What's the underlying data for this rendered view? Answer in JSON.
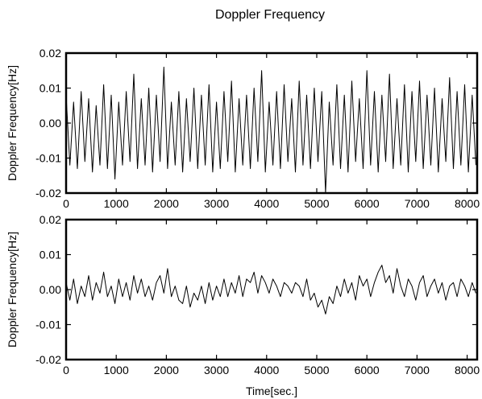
{
  "figure": {
    "title": "Doppler Frequency",
    "xlabel": "Time[sec.]"
  },
  "chart_data": [
    {
      "type": "line",
      "title": "",
      "xlabel": "",
      "ylabel": "Doppler Frequency[Hz]",
      "xlim": [
        0,
        8200
      ],
      "ylim": [
        -0.02,
        0.02
      ],
      "xticks": [
        0,
        1000,
        2000,
        3000,
        4000,
        5000,
        6000,
        7000,
        8000
      ],
      "xtick_labels": [
        "0",
        "1000",
        "2000",
        "3000",
        "4000",
        "5000",
        "6000",
        "7000",
        "8000"
      ],
      "yticks": [
        -0.02,
        -0.01,
        0.0,
        0.01,
        0.02
      ],
      "ytick_labels": [
        "-0.02",
        "-0.01",
        "0.00",
        "0.01",
        "0.02"
      ],
      "grid": false,
      "series": [
        {
          "color": "#000000",
          "x": [
            0,
            75,
            150,
            225,
            300,
            375,
            450,
            525,
            600,
            675,
            750,
            825,
            900,
            975,
            1050,
            1125,
            1200,
            1275,
            1350,
            1425,
            1500,
            1575,
            1650,
            1725,
            1800,
            1875,
            1950,
            2025,
            2100,
            2175,
            2250,
            2325,
            2400,
            2475,
            2550,
            2625,
            2700,
            2775,
            2850,
            2925,
            3000,
            3075,
            3150,
            3225,
            3300,
            3375,
            3450,
            3525,
            3600,
            3675,
            3750,
            3825,
            3900,
            3975,
            4050,
            4125,
            4200,
            4275,
            4350,
            4425,
            4500,
            4575,
            4650,
            4725,
            4800,
            4875,
            4950,
            5025,
            5100,
            5175,
            5250,
            5325,
            5400,
            5475,
            5550,
            5625,
            5700,
            5775,
            5850,
            5925,
            6000,
            6075,
            6150,
            6225,
            6300,
            6375,
            6450,
            6525,
            6600,
            6675,
            6750,
            6825,
            6900,
            6975,
            7050,
            7125,
            7200,
            7275,
            7350,
            7425,
            7500,
            7575,
            7650,
            7725,
            7800,
            7875,
            7950,
            8025,
            8100,
            8175
          ],
          "y": [
            0.008,
            -0.012,
            0.006,
            -0.013,
            0.009,
            -0.011,
            0.007,
            -0.014,
            0.005,
            -0.012,
            0.011,
            -0.013,
            0.008,
            -0.016,
            0.006,
            -0.012,
            0.009,
            -0.011,
            0.014,
            -0.013,
            0.007,
            -0.012,
            0.01,
            -0.014,
            0.008,
            -0.011,
            0.016,
            -0.013,
            0.006,
            -0.012,
            0.009,
            -0.014,
            0.007,
            -0.011,
            0.01,
            -0.013,
            0.008,
            -0.012,
            0.011,
            -0.014,
            0.006,
            -0.013,
            0.009,
            -0.011,
            0.012,
            -0.014,
            0.007,
            -0.012,
            0.008,
            -0.013,
            0.01,
            -0.011,
            0.015,
            -0.014,
            0.006,
            -0.012,
            0.009,
            -0.013,
            0.011,
            -0.011,
            0.007,
            -0.014,
            0.012,
            -0.012,
            0.008,
            -0.013,
            0.01,
            -0.011,
            0.009,
            -0.02,
            0.006,
            -0.012,
            0.011,
            -0.013,
            0.008,
            -0.014,
            0.012,
            -0.011,
            0.007,
            -0.013,
            0.015,
            -0.012,
            0.009,
            -0.014,
            0.008,
            -0.011,
            0.014,
            -0.013,
            0.007,
            -0.012,
            0.011,
            -0.014,
            0.009,
            -0.011,
            0.012,
            -0.013,
            0.008,
            -0.012,
            0.01,
            -0.014,
            0.007,
            -0.011,
            0.013,
            -0.013,
            0.009,
            -0.012,
            0.011,
            -0.014,
            0.008,
            -0.012
          ]
        }
      ]
    },
    {
      "type": "line",
      "title": "",
      "xlabel": "Time[sec.]",
      "ylabel": "Doppler Frequency[Hz]",
      "xlim": [
        0,
        8200
      ],
      "ylim": [
        -0.02,
        0.02
      ],
      "xticks": [
        0,
        1000,
        2000,
        3000,
        4000,
        5000,
        6000,
        7000,
        8000
      ],
      "xtick_labels": [
        "0",
        "1000",
        "2000",
        "3000",
        "4000",
        "5000",
        "6000",
        "7000",
        "8000"
      ],
      "yticks": [
        -0.02,
        -0.01,
        0.0,
        0.01,
        0.02
      ],
      "ytick_labels": [
        "-0.02",
        "-0.01",
        "0.00",
        "0.01",
        "0.02"
      ],
      "grid": false,
      "series": [
        {
          "color": "#000000",
          "x": [
            0,
            75,
            150,
            225,
            300,
            375,
            450,
            525,
            600,
            675,
            750,
            825,
            900,
            975,
            1050,
            1125,
            1200,
            1275,
            1350,
            1425,
            1500,
            1575,
            1650,
            1725,
            1800,
            1875,
            1950,
            2025,
            2100,
            2175,
            2250,
            2325,
            2400,
            2475,
            2550,
            2625,
            2700,
            2775,
            2850,
            2925,
            3000,
            3075,
            3150,
            3225,
            3300,
            3375,
            3450,
            3525,
            3600,
            3675,
            3750,
            3825,
            3900,
            3975,
            4050,
            4125,
            4200,
            4275,
            4350,
            4425,
            4500,
            4575,
            4650,
            4725,
            4800,
            4875,
            4950,
            5025,
            5100,
            5175,
            5250,
            5325,
            5400,
            5475,
            5550,
            5625,
            5700,
            5775,
            5850,
            5925,
            6000,
            6075,
            6150,
            6225,
            6300,
            6375,
            6450,
            6525,
            6600,
            6675,
            6750,
            6825,
            6900,
            6975,
            7050,
            7125,
            7200,
            7275,
            7350,
            7425,
            7500,
            7575,
            7650,
            7725,
            7800,
            7875,
            7950,
            8025,
            8100,
            8175
          ],
          "y": [
            0.002,
            -0.003,
            0.003,
            -0.004,
            0.001,
            -0.002,
            0.004,
            -0.003,
            0.002,
            -0.001,
            0.005,
            -0.002,
            0.001,
            -0.004,
            0.003,
            -0.002,
            0.002,
            -0.003,
            0.004,
            -0.001,
            0.003,
            -0.002,
            0.001,
            -0.003,
            0.002,
            0.004,
            -0.001,
            0.006,
            -0.002,
            0.001,
            -0.003,
            -0.004,
            0.001,
            -0.005,
            -0.001,
            -0.003,
            0.001,
            -0.004,
            0.002,
            -0.003,
            0.001,
            -0.002,
            0.003,
            -0.002,
            0.002,
            -0.001,
            0.004,
            -0.002,
            0.003,
            0.002,
            0.005,
            -0.001,
            0.004,
            0.002,
            -0.001,
            0.003,
            0.001,
            -0.002,
            0.002,
            0.001,
            -0.001,
            0.002,
            0.001,
            -0.002,
            0.003,
            -0.003,
            -0.001,
            -0.005,
            -0.003,
            -0.007,
            -0.002,
            -0.004,
            0.001,
            -0.002,
            0.003,
            -0.001,
            0.002,
            -0.003,
            0.004,
            0.001,
            0.003,
            -0.002,
            0.002,
            0.005,
            0.007,
            0.002,
            0.004,
            -0.001,
            0.006,
            0.001,
            -0.002,
            0.003,
            0.001,
            -0.003,
            0.002,
            0.004,
            -0.002,
            0.001,
            0.003,
            -0.001,
            0.002,
            -0.003,
            0.001,
            0.002,
            -0.002,
            0.003,
            0.001,
            -0.002,
            0.002,
            -0.001
          ]
        }
      ]
    }
  ]
}
